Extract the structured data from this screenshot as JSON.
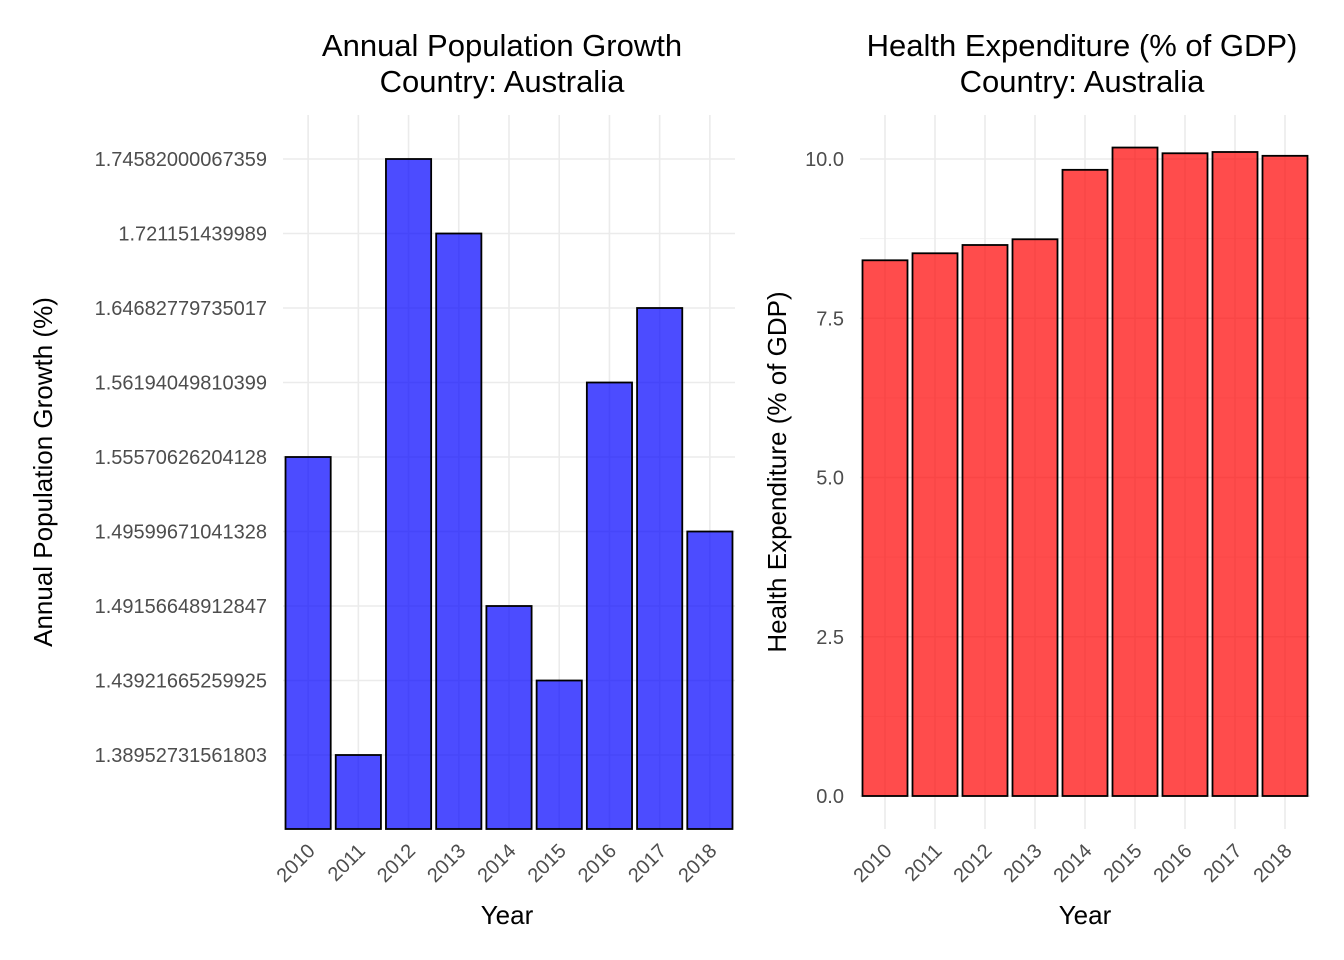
{
  "chart_data": [
    {
      "type": "bar",
      "title": [
        "Annual Population Growth",
        "Country: Australia"
      ],
      "xlabel": "Year",
      "ylabel": "Annual Population Growth (%)",
      "categories": [
        "2010",
        "2011",
        "2012",
        "2013",
        "2014",
        "2015",
        "2016",
        "2017",
        "2018"
      ],
      "values": [
        "1.55570626204128",
        "1.38952731561803",
        "1.74582000067359",
        "1.721151439989",
        "1.49156648912847",
        "1.43921665259925",
        "1.56194049810399",
        "1.64682779735017",
        "1.49599671041328"
      ],
      "y_axis": "discrete",
      "y_ticks": [
        "1.38952731561803",
        "1.43921665259925",
        "1.49156648912847",
        "1.49599671041328",
        "1.55570626204128",
        "1.56194049810399",
        "1.64682779735017",
        "1.721151439989",
        "1.74582000067359"
      ],
      "bar_color": "#0000FF",
      "bar_opacity": 0.7,
      "grid": true,
      "legend": "none"
    },
    {
      "type": "bar",
      "title": [
        "Health Expenditure (% of GDP)",
        "Country: Australia"
      ],
      "xlabel": "Year",
      "ylabel": "Health Expenditure (% of GDP)",
      "categories": [
        "2010",
        "2011",
        "2012",
        "2013",
        "2014",
        "2015",
        "2016",
        "2017",
        "2018"
      ],
      "values": [
        8.41,
        8.52,
        8.65,
        8.74,
        9.83,
        10.18,
        10.09,
        10.11,
        10.05
      ],
      "y_axis": "continuous",
      "ylim": [
        0,
        10.5
      ],
      "y_ticks": [
        0,
        2.5,
        5,
        7.5,
        10
      ],
      "y_tick_labels": [
        "0.0",
        "2.5",
        "5.0",
        "7.5",
        "10.0"
      ],
      "bar_color": "#FF0000",
      "bar_opacity": 0.7,
      "grid": true,
      "legend": "none"
    }
  ]
}
